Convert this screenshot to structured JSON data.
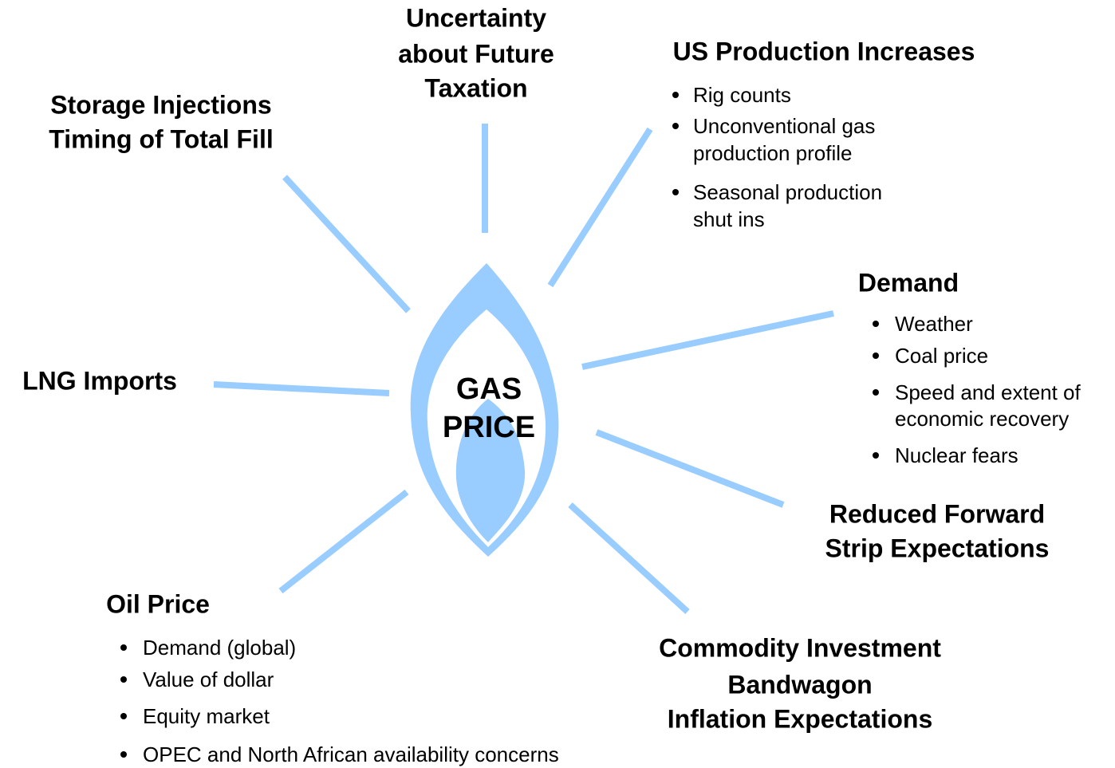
{
  "center": {
    "lines": [
      "GAS",
      "PRICE"
    ]
  },
  "factors": [
    {
      "title": [
        "Uncertainty",
        "about Future",
        "Taxation"
      ]
    },
    {
      "title": [
        "US Production Increases"
      ],
      "bullets": [
        [
          "Rig counts"
        ],
        [
          "Unconventional gas",
          "production profile"
        ],
        [
          "Seasonal production",
          "shut ins"
        ]
      ]
    },
    {
      "title": [
        "Storage Injections",
        "Timing of Total Fill"
      ]
    },
    {
      "title": [
        "Demand"
      ],
      "bullets": [
        [
          "Weather"
        ],
        [
          "Coal price"
        ],
        [
          "Speed and extent of",
          "economic recovery"
        ],
        [
          "Nuclear fears"
        ]
      ]
    },
    {
      "title": [
        "LNG Imports"
      ]
    },
    {
      "title": [
        "Reduced Forward",
        "Strip Expectations"
      ]
    },
    {
      "title": [
        "Oil Price"
      ],
      "bullets": [
        [
          "Demand (global)"
        ],
        [
          "Value of dollar"
        ],
        [
          "Equity market"
        ],
        [
          "OPEC and North African availability concerns"
        ]
      ]
    },
    {
      "title": [
        "Commodity Investment",
        "Bandwagon",
        "Inflation Expectations"
      ]
    }
  ]
}
